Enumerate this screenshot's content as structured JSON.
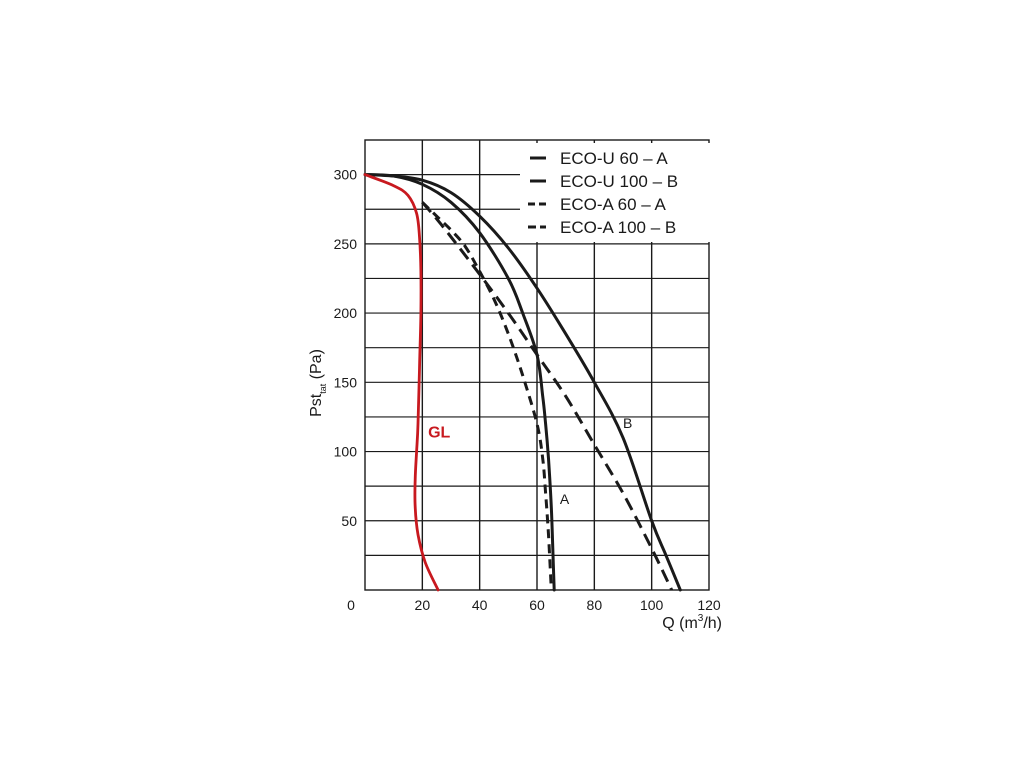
{
  "chart_data": {
    "type": "line",
    "xlabel": {
      "main": "Q (m",
      "sup": "3",
      "tail": "/h)"
    },
    "ylabel": {
      "main": "Pst",
      "sub": "tat",
      "tail": " (Pa)"
    },
    "xlim": [
      0,
      120
    ],
    "ylim": [
      0,
      325
    ],
    "x_ticks": [
      0,
      20,
      40,
      60,
      80,
      100,
      120
    ],
    "y_ticks": [
      50,
      100,
      150,
      200,
      250,
      300
    ],
    "grid": true,
    "legend_position": "top-right",
    "colors": {
      "curve": "#1a1a1a",
      "gl": "#c8191f",
      "grid": "#1a1a1a"
    },
    "series": [
      {
        "name": "ECO-U 60 – A",
        "dash": "solid",
        "x": [
          0,
          10,
          20,
          30,
          40,
          50,
          55,
          60,
          62,
          63,
          64,
          65,
          65.5,
          66
        ],
        "y": [
          300,
          299,
          293,
          280,
          258,
          225,
          200,
          170,
          140,
          120,
          95,
          60,
          30,
          0
        ]
      },
      {
        "name": "ECO-U 100 – B",
        "dash": "solid",
        "x": [
          0,
          10,
          20,
          30,
          40,
          50,
          60,
          70,
          80,
          90,
          100,
          105,
          110
        ],
        "y": [
          300,
          299,
          296,
          287,
          270,
          247,
          218,
          185,
          150,
          110,
          50,
          25,
          0
        ]
      },
      {
        "name": "ECO-A 60 – A",
        "dash": "short",
        "x": [
          20,
          25,
          30,
          35,
          40,
          45,
          50,
          55,
          60,
          62,
          63,
          64,
          65
        ],
        "y": [
          280,
          270,
          260,
          248,
          230,
          210,
          185,
          155,
          120,
          95,
          70,
          40,
          0
        ]
      },
      {
        "name": "ECO-A 100 – B",
        "dash": "long",
        "x": [
          20,
          25,
          30,
          40,
          50,
          60,
          70,
          80,
          90,
          100,
          107
        ],
        "y": [
          280,
          268,
          255,
          228,
          200,
          170,
          140,
          105,
          70,
          30,
          0
        ]
      },
      {
        "name": "GL",
        "dash": "solid",
        "x": [
          0,
          10,
          15,
          18,
          19,
          19.5,
          19.5,
          19,
          18.5,
          18,
          17.5,
          17.5,
          18.5,
          21,
          25.5
        ],
        "y": [
          300,
          292,
          285,
          272,
          255,
          230,
          200,
          160,
          120,
          100,
          80,
          60,
          40,
          20,
          0
        ]
      }
    ],
    "annotations": [
      {
        "text": "A",
        "x": 68,
        "y": 62
      },
      {
        "text": "B",
        "x": 90,
        "y": 117
      },
      {
        "text": "GL",
        "x": 22,
        "y": 110
      }
    ]
  }
}
